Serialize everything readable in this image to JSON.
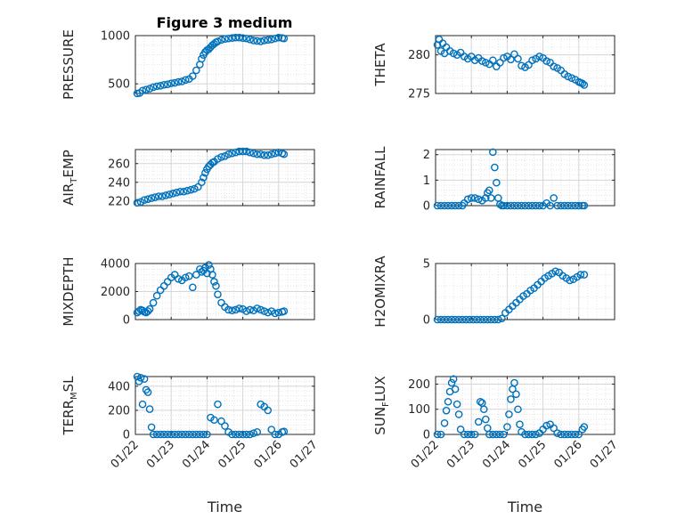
{
  "figure_title": "Figure 3 medium",
  "x_axis_label": "Time",
  "x_tick_labels": [
    "01/22",
    "01/23",
    "01/24",
    "01/25",
    "01/26",
    "01/27"
  ],
  "colors": {
    "marker": "#0072BD",
    "axis": "#262626",
    "grid": "#dfdfdf",
    "background": "#ffffff"
  },
  "chart_data": [
    {
      "type": "scatter",
      "ylabel": "PRESSURE",
      "ylim": [
        400,
        1000
      ],
      "yticks": [
        500,
        1000
      ],
      "ytick_labels": [
        "500",
        "1000"
      ],
      "xlim": [
        0,
        5
      ],
      "x_tick_labels": [],
      "grid": true,
      "x": [
        0.05,
        0.12,
        0.2,
        0.3,
        0.4,
        0.5,
        0.6,
        0.7,
        0.8,
        0.9,
        1.0,
        1.1,
        1.2,
        1.3,
        1.4,
        1.5,
        1.6,
        1.7,
        1.8,
        1.85,
        1.9,
        1.95,
        2.0,
        2.05,
        2.1,
        2.15,
        2.2,
        2.25,
        2.3,
        2.4,
        2.5,
        2.6,
        2.7,
        2.8,
        2.9,
        3.0,
        3.1,
        3.2,
        3.3,
        3.4,
        3.5,
        3.6,
        3.7,
        3.8,
        3.9,
        4.0,
        4.1,
        4.15
      ],
      "y": [
        400,
        405,
        430,
        440,
        450,
        465,
        475,
        480,
        490,
        495,
        505,
        510,
        520,
        525,
        540,
        550,
        580,
        640,
        700,
        760,
        800,
        830,
        850,
        860,
        880,
        900,
        915,
        930,
        940,
        955,
        965,
        970,
        975,
        980,
        980,
        975,
        970,
        960,
        950,
        945,
        940,
        950,
        955,
        960,
        970,
        980,
        975,
        970
      ]
    },
    {
      "type": "scatter",
      "ylabel": "THETA",
      "ylim": [
        275,
        282.5
      ],
      "yticks": [
        275,
        280
      ],
      "ytick_labels": [
        "275",
        "280"
      ],
      "xlim": [
        0,
        5
      ],
      "x_tick_labels": [],
      "grid": true,
      "x": [
        0.05,
        0.1,
        0.15,
        0.2,
        0.25,
        0.3,
        0.4,
        0.5,
        0.6,
        0.7,
        0.8,
        0.9,
        1.0,
        1.1,
        1.2,
        1.3,
        1.4,
        1.5,
        1.6,
        1.7,
        1.8,
        1.9,
        2.0,
        2.1,
        2.2,
        2.3,
        2.4,
        2.5,
        2.6,
        2.7,
        2.8,
        2.9,
        3.0,
        3.1,
        3.2,
        3.3,
        3.4,
        3.5,
        3.6,
        3.7,
        3.8,
        3.9,
        4.0,
        4.05,
        4.1,
        4.15
      ],
      "y": [
        281.3,
        282.0,
        280.5,
        281.5,
        280.2,
        281.0,
        280.5,
        280.2,
        280.0,
        280.3,
        279.8,
        279.5,
        279.8,
        279.3,
        279.6,
        279.2,
        279.0,
        278.8,
        279.3,
        278.5,
        279.0,
        279.6,
        279.8,
        279.4,
        280.1,
        279.5,
        278.6,
        278.4,
        278.7,
        279.3,
        279.5,
        279.8,
        279.6,
        279.2,
        279.0,
        278.5,
        278.3,
        278.0,
        277.5,
        277.2,
        277.0,
        276.8,
        276.5,
        276.4,
        276.3,
        276.1
      ]
    },
    {
      "type": "scatter",
      "ylabel": "AIR_TEMP",
      "ylim": [
        215,
        275
      ],
      "yticks": [
        220,
        240,
        260
      ],
      "ytick_labels": [
        "220",
        "240",
        "260"
      ],
      "xlim": [
        0,
        5
      ],
      "x_tick_labels": [],
      "grid": true,
      "x": [
        0.05,
        0.15,
        0.25,
        0.35,
        0.45,
        0.55,
        0.65,
        0.75,
        0.85,
        0.95,
        1.05,
        1.15,
        1.25,
        1.35,
        1.45,
        1.55,
        1.65,
        1.75,
        1.85,
        1.9,
        1.95,
        2.0,
        2.05,
        2.1,
        2.15,
        2.2,
        2.3,
        2.4,
        2.5,
        2.6,
        2.7,
        2.8,
        2.9,
        3.0,
        3.1,
        3.2,
        3.3,
        3.4,
        3.5,
        3.6,
        3.7,
        3.8,
        3.9,
        4.0,
        4.1,
        4.15
      ],
      "y": [
        218,
        219,
        221,
        222,
        223,
        224,
        225,
        225,
        226,
        227,
        228,
        229,
        230,
        230,
        231,
        232,
        233,
        235,
        240,
        245,
        250,
        254,
        257,
        259,
        261,
        262,
        265,
        267,
        268,
        270,
        271,
        272,
        273,
        273,
        273,
        272,
        271,
        270,
        270,
        269,
        269,
        270,
        271,
        272,
        271,
        270
      ]
    },
    {
      "type": "scatter",
      "ylabel": "RAINFALL",
      "ylim": [
        0,
        2.2
      ],
      "yticks": [
        0,
        1,
        2
      ],
      "ytick_labels": [
        "0",
        "1",
        "2"
      ],
      "xlim": [
        0,
        5
      ],
      "x_tick_labels": [],
      "grid": true,
      "x": [
        0.05,
        0.15,
        0.25,
        0.35,
        0.45,
        0.55,
        0.65,
        0.75,
        0.8,
        0.9,
        1.0,
        1.1,
        1.2,
        1.3,
        1.4,
        1.45,
        1.5,
        1.55,
        1.6,
        1.65,
        1.7,
        1.75,
        1.8,
        1.85,
        1.9,
        2.0,
        2.1,
        2.2,
        2.3,
        2.4,
        2.5,
        2.6,
        2.7,
        2.8,
        2.9,
        3.0,
        3.1,
        3.2,
        3.3,
        3.4,
        3.5,
        3.6,
        3.7,
        3.8,
        3.9,
        4.0,
        4.1,
        4.15
      ],
      "y": [
        0,
        0,
        0,
        0,
        0,
        0,
        0,
        0,
        0.1,
        0.25,
        0.3,
        0.3,
        0.25,
        0.2,
        0.3,
        0.5,
        0.6,
        0.3,
        2.1,
        1.5,
        0.9,
        0.3,
        0.05,
        0,
        0,
        0,
        0,
        0,
        0,
        0,
        0,
        0,
        0,
        0,
        0,
        0,
        0.1,
        0,
        0.3,
        0,
        0,
        0,
        0,
        0,
        0,
        0,
        0,
        0
      ]
    },
    {
      "type": "scatter",
      "ylabel": "MIXDEPTH",
      "ylim": [
        0,
        4000
      ],
      "yticks": [
        0,
        2000,
        4000
      ],
      "ytick_labels": [
        "0",
        "2000",
        "4000"
      ],
      "xlim": [
        0,
        5
      ],
      "x_tick_labels": [],
      "grid": true,
      "x": [
        0.05,
        0.1,
        0.15,
        0.2,
        0.25,
        0.3,
        0.35,
        0.4,
        0.5,
        0.6,
        0.7,
        0.8,
        0.9,
        1.0,
        1.1,
        1.2,
        1.3,
        1.4,
        1.5,
        1.6,
        1.7,
        1.8,
        1.85,
        1.9,
        1.95,
        2.0,
        2.05,
        2.1,
        2.15,
        2.2,
        2.25,
        2.3,
        2.4,
        2.5,
        2.6,
        2.7,
        2.8,
        2.9,
        3.0,
        3.1,
        3.2,
        3.3,
        3.4,
        3.5,
        3.6,
        3.7,
        3.8,
        3.9,
        4.0,
        4.1,
        4.15
      ],
      "y": [
        500,
        600,
        700,
        650,
        550,
        500,
        600,
        750,
        1200,
        1700,
        2100,
        2400,
        2700,
        3000,
        3200,
        2900,
        2800,
        3000,
        3100,
        2300,
        3200,
        3600,
        3400,
        3500,
        3700,
        3300,
        3900,
        3600,
        3200,
        2700,
        2400,
        1800,
        1200,
        900,
        700,
        650,
        700,
        800,
        750,
        600,
        700,
        650,
        800,
        700,
        600,
        500,
        600,
        450,
        500,
        550,
        600
      ]
    },
    {
      "type": "scatter",
      "ylabel": "H2OMIXRA",
      "ylim": [
        0,
        5
      ],
      "yticks": [
        0,
        5
      ],
      "ytick_labels": [
        "0",
        "5"
      ],
      "xlim": [
        0,
        5
      ],
      "x_tick_labels": [],
      "grid": true,
      "x": [
        0.05,
        0.15,
        0.25,
        0.35,
        0.45,
        0.55,
        0.65,
        0.75,
        0.85,
        0.95,
        1.05,
        1.15,
        1.25,
        1.35,
        1.45,
        1.55,
        1.65,
        1.75,
        1.85,
        1.95,
        2.05,
        2.15,
        2.25,
        2.35,
        2.45,
        2.55,
        2.65,
        2.75,
        2.85,
        2.95,
        3.05,
        3.15,
        3.25,
        3.35,
        3.45,
        3.55,
        3.65,
        3.75,
        3.85,
        3.95,
        4.05,
        4.15
      ],
      "y": [
        0,
        0,
        0,
        0,
        0,
        0,
        0,
        0,
        0,
        0,
        0,
        0,
        0,
        0,
        0,
        0,
        0,
        0,
        0.1,
        0.6,
        0.9,
        1.2,
        1.5,
        1.8,
        2.1,
        2.3,
        2.6,
        2.8,
        3.1,
        3.4,
        3.7,
        3.9,
        4.1,
        4.3,
        4.2,
        3.9,
        3.7,
        3.5,
        3.6,
        3.8,
        4.0,
        4.0
      ]
    },
    {
      "type": "scatter",
      "ylabel": "TERR_MSL",
      "ylim": [
        0,
        480
      ],
      "yticks": [
        0,
        200,
        400
      ],
      "ytick_labels": [
        "0",
        "200",
        "400"
      ],
      "xlim": [
        0,
        5
      ],
      "x_tick_labels": [
        "01/22",
        "01/23",
        "01/24",
        "01/25",
        "01/26",
        "01/27"
      ],
      "grid": true,
      "x": [
        0.05,
        0.1,
        0.15,
        0.2,
        0.25,
        0.3,
        0.35,
        0.4,
        0.45,
        0.5,
        0.6,
        0.7,
        0.8,
        0.9,
        1.0,
        1.1,
        1.2,
        1.3,
        1.4,
        1.5,
        1.6,
        1.7,
        1.8,
        1.9,
        2.0,
        2.1,
        2.2,
        2.3,
        2.4,
        2.5,
        2.6,
        2.7,
        2.8,
        2.9,
        3.0,
        3.1,
        3.2,
        3.3,
        3.4,
        3.5,
        3.6,
        3.7,
        3.8,
        3.9,
        4.0,
        4.1,
        4.15
      ],
      "y": [
        480,
        440,
        470,
        250,
        460,
        370,
        350,
        210,
        60,
        0,
        0,
        0,
        0,
        0,
        0,
        0,
        0,
        0,
        0,
        0,
        0,
        0,
        0,
        0,
        0,
        140,
        120,
        250,
        110,
        70,
        20,
        0,
        0,
        0,
        0,
        0,
        0,
        10,
        20,
        250,
        230,
        200,
        40,
        0,
        0,
        20,
        25
      ]
    },
    {
      "type": "scatter",
      "ylabel": "SUN_FLUX",
      "ylim": [
        0,
        230
      ],
      "yticks": [
        0,
        100,
        200
      ],
      "ytick_labels": [
        "0",
        "100",
        "200"
      ],
      "xlim": [
        0,
        5
      ],
      "x_tick_labels": [
        "01/22",
        "01/23",
        "01/24",
        "01/25",
        "01/26",
        "01/27"
      ],
      "grid": true,
      "x": [
        0.05,
        0.15,
        0.25,
        0.3,
        0.35,
        0.4,
        0.45,
        0.5,
        0.55,
        0.6,
        0.65,
        0.7,
        0.8,
        0.9,
        1.0,
        1.1,
        1.2,
        1.25,
        1.3,
        1.35,
        1.4,
        1.45,
        1.5,
        1.6,
        1.7,
        1.8,
        1.9,
        2.0,
        2.05,
        2.1,
        2.15,
        2.2,
        2.25,
        2.3,
        2.35,
        2.4,
        2.5,
        2.6,
        2.7,
        2.8,
        2.9,
        3.0,
        3.1,
        3.2,
        3.3,
        3.4,
        3.5,
        3.6,
        3.7,
        3.8,
        3.9,
        4.0,
        4.1,
        4.15
      ],
      "y": [
        0,
        0,
        45,
        95,
        130,
        170,
        205,
        220,
        180,
        120,
        80,
        20,
        0,
        0,
        0,
        0,
        50,
        130,
        125,
        100,
        60,
        25,
        0,
        0,
        0,
        0,
        0,
        30,
        80,
        140,
        180,
        205,
        160,
        100,
        40,
        10,
        0,
        0,
        0,
        0,
        5,
        20,
        35,
        40,
        25,
        5,
        0,
        0,
        0,
        0,
        0,
        0,
        20,
        30
      ]
    }
  ]
}
